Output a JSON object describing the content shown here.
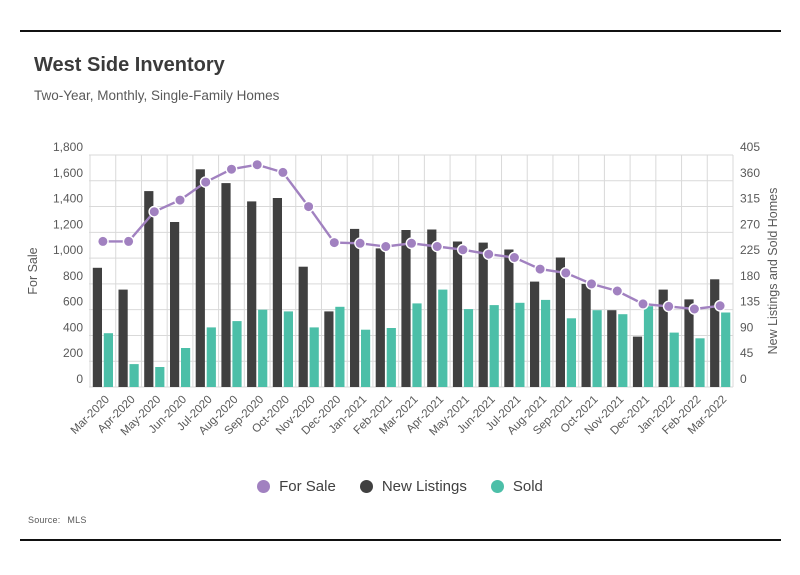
{
  "page": {
    "title": "West Side Inventory",
    "subtitle": "Two-Year, Monthly, Single-Family Homes",
    "source_label": "Source:",
    "source_value": "MLS"
  },
  "legend": [
    {
      "label": "For Sale",
      "color": "#a181c0"
    },
    {
      "label": "New Listings",
      "color": "#404040"
    },
    {
      "label": "Sold",
      "color": "#4cbfa8"
    }
  ],
  "colors": {
    "for_sale_line": "#a181c0",
    "new_listings_bar": "#404040",
    "sold_bar": "#4cbfa8",
    "gridline": "#d9d9d9",
    "axis_text": "#595959"
  },
  "chart_data": {
    "type": "bar",
    "title": "West Side Inventory",
    "subtitle": "Two-Year, Monthly, Single-Family Homes",
    "grid": true,
    "legend_position": "bottom",
    "categories": [
      "Mar-2020",
      "Apr-2020",
      "May-2020",
      "Jun-2020",
      "Jul-2020",
      "Aug-2020",
      "Sep-2020",
      "Oct-2020",
      "Nov-2020",
      "Dec-2020",
      "Jan-2021",
      "Feb-2021",
      "Mar-2021",
      "Apr-2021",
      "May-2021",
      "Jun-2021",
      "Jul-2021",
      "Aug-2021",
      "Sep-2021",
      "Oct-2021",
      "Nov-2021",
      "Dec-2021",
      "Jan-2022",
      "Feb-2022",
      "Mar-2022"
    ],
    "left_axis": {
      "label": "For Sale",
      "min": 0,
      "max": 1800,
      "step": 200
    },
    "right_axis": {
      "label": "New Listings and Sold Homes",
      "min": 0,
      "max": 405,
      "step": 45
    },
    "series": [
      {
        "name": "For Sale",
        "type": "line",
        "axis": "left",
        "color": "#a181c0",
        "values": [
          1130,
          1130,
          1360,
          1450,
          1590,
          1690,
          1725,
          1665,
          1400,
          1120,
          1115,
          1090,
          1115,
          1090,
          1065,
          1030,
          1005,
          915,
          885,
          800,
          745,
          645,
          625,
          605,
          630
        ]
      },
      {
        "name": "New Listings",
        "type": "bar",
        "axis": "right",
        "color": "#404040",
        "values": [
          208,
          170,
          342,
          288,
          380,
          356,
          324,
          330,
          210,
          132,
          276,
          242,
          274,
          275,
          254,
          252,
          240,
          184,
          226,
          180,
          134,
          88,
          170,
          153,
          188
        ]
      },
      {
        "name": "Sold",
        "type": "bar",
        "axis": "right",
        "color": "#4cbfa8",
        "values": [
          94,
          40,
          35,
          68,
          104,
          115,
          135,
          132,
          104,
          140,
          100,
          103,
          146,
          170,
          136,
          143,
          147,
          152,
          120,
          134,
          127,
          141,
          95,
          85,
          130
        ]
      }
    ]
  }
}
